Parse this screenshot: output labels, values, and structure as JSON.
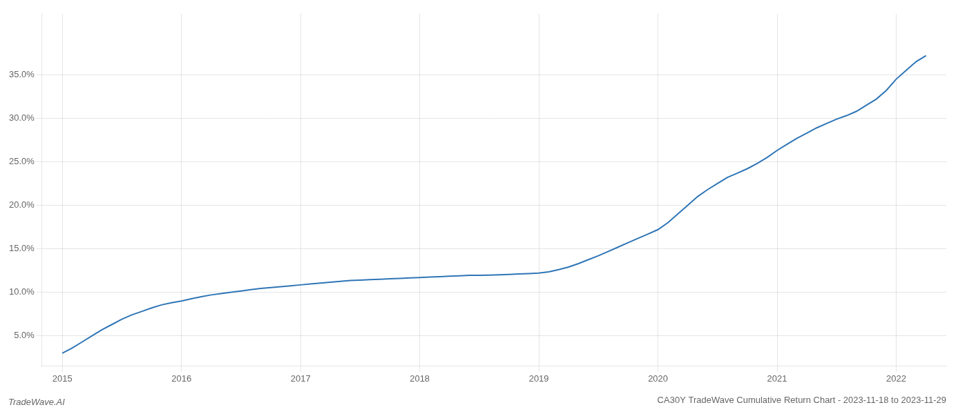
{
  "chart_data": {
    "type": "line",
    "title": "CA30Y TradeWave Cumulative Return Chart - 2023-11-18 to 2023-11-29",
    "annotations": [
      "TradeWave.AI"
    ],
    "color": "#2E75B6",
    "grid": true,
    "x": [
      2015.0,
      2015.083,
      2015.167,
      2015.25,
      2015.333,
      2015.417,
      2015.5,
      2015.583,
      2015.667,
      2015.75,
      2015.833,
      2015.917,
      2016.0,
      2016.083,
      2016.167,
      2016.25,
      2016.333,
      2016.417,
      2016.5,
      2016.583,
      2016.667,
      2016.75,
      2016.833,
      2016.917,
      2017.0,
      2017.083,
      2017.167,
      2017.25,
      2017.333,
      2017.417,
      2017.5,
      2017.583,
      2017.667,
      2017.75,
      2017.833,
      2017.917,
      2018.0,
      2018.083,
      2018.167,
      2018.25,
      2018.333,
      2018.417,
      2018.5,
      2018.583,
      2018.667,
      2018.75,
      2018.833,
      2018.917,
      2019.0,
      2019.083,
      2019.167,
      2019.25,
      2019.333,
      2019.417,
      2019.5,
      2019.583,
      2019.667,
      2019.75,
      2019.833,
      2019.917,
      2020.0,
      2020.083,
      2020.167,
      2020.25,
      2020.333,
      2020.417,
      2020.5,
      2020.583,
      2020.667,
      2020.75,
      2020.833,
      2020.917,
      2021.0,
      2021.083,
      2021.167,
      2021.25,
      2021.333,
      2021.417,
      2021.5,
      2021.583,
      2021.667,
      2021.75,
      2021.833,
      2021.917,
      2022.0,
      2022.083,
      2022.167,
      2022.25
    ],
    "values": [
      3.0,
      3.6,
      4.3,
      5.0,
      5.7,
      6.3,
      6.9,
      7.4,
      7.8,
      8.2,
      8.55,
      8.8,
      9.0,
      9.25,
      9.5,
      9.7,
      9.85,
      10.0,
      10.15,
      10.3,
      10.45,
      10.55,
      10.65,
      10.75,
      10.85,
      10.95,
      11.05,
      11.15,
      11.25,
      11.35,
      11.4,
      11.45,
      11.5,
      11.55,
      11.6,
      11.65,
      11.7,
      11.75,
      11.8,
      11.85,
      11.9,
      11.95,
      11.95,
      11.97,
      12.0,
      12.05,
      12.1,
      12.15,
      12.2,
      12.35,
      12.6,
      12.9,
      13.3,
      13.75,
      14.2,
      14.7,
      15.2,
      15.7,
      16.2,
      16.7,
      17.2,
      18.0,
      19.0,
      20.0,
      21.0,
      21.8,
      22.5,
      23.2,
      23.7,
      24.2,
      24.8,
      25.5,
      26.3,
      27.0,
      27.7,
      28.3,
      28.9,
      29.4,
      29.9,
      30.3,
      30.8,
      31.5,
      32.2,
      33.2,
      34.5,
      35.5,
      36.5,
      37.2
    ],
    "xlim": [
      2014.83,
      2022.42
    ],
    "ylim": [
      1.5,
      42.0
    ],
    "xticks": [
      2015,
      2016,
      2017,
      2018,
      2019,
      2020,
      2021,
      2022
    ],
    "yticks": [
      {
        "value": 5.0,
        "label": "5.0%"
      },
      {
        "value": 10.0,
        "label": "10.0%"
      },
      {
        "value": 15.0,
        "label": "15.0%"
      },
      {
        "value": 20.0,
        "label": "20.0%"
      },
      {
        "value": 25.0,
        "label": "25.0%"
      },
      {
        "value": 30.0,
        "label": "30.0%"
      },
      {
        "value": 35.0,
        "label": "35.0%"
      }
    ]
  }
}
